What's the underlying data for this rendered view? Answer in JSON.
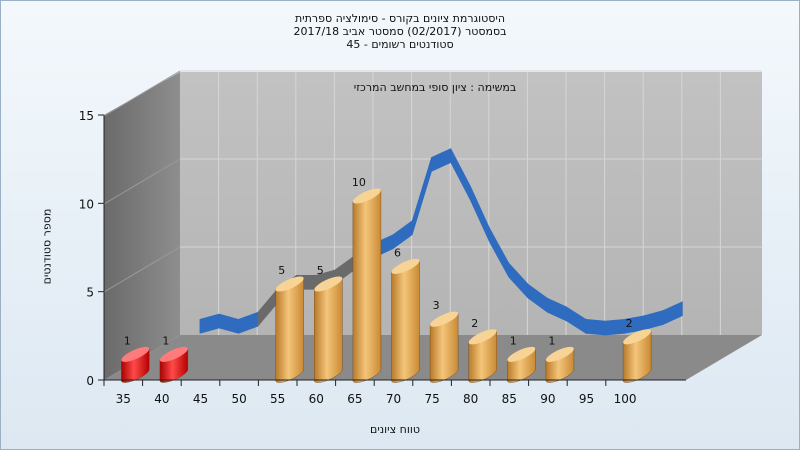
{
  "chart_data": {
    "type": "bar",
    "title_lines": [
      "היסטוגרמת ציונים בקורס - סימולציה ספרתית",
      "בסמסטר  (02/2017)  סמסטר אביב 2017/18",
      "סטודנטים רשומים - 45"
    ],
    "subtitle": "במשימה : ציון סופי במחשב המרכזי",
    "xlabel": "טווח ציונים",
    "ylabel": "מספר סטודנטים",
    "categories": [
      "35",
      "40",
      "45",
      "50",
      "55",
      "60",
      "65",
      "70",
      "75",
      "80",
      "85",
      "90",
      "95",
      "100"
    ],
    "values": [
      1,
      1,
      null,
      null,
      5,
      5,
      10,
      6,
      3,
      2,
      1,
      1,
      null,
      2
    ],
    "bar_colors": [
      "#d81818",
      "#d81818",
      "",
      "",
      "#e6a84e",
      "#e6a84e",
      "#e6a84e",
      "#e6a84e",
      "#e6a84e",
      "#e6a84e",
      "#e6a84e",
      "#e6a84e",
      "",
      "#e6a84e"
    ],
    "curve_x": [
      40,
      42.5,
      45,
      47.5,
      50,
      52.5,
      55,
      57.5,
      60,
      62.5,
      65,
      67.5,
      70,
      72.5,
      75,
      77.5,
      80,
      82.5,
      85,
      87.5,
      90,
      92.5,
      95,
      97.5,
      100,
      102.5
    ],
    "curve_y": [
      1.8,
      2.1,
      1.8,
      2.2,
      3.5,
      4.3,
      4.3,
      4.6,
      5.4,
      6.1,
      6.6,
      7.4,
      11.0,
      11.5,
      9.4,
      7.0,
      5.0,
      3.8,
      3.0,
      2.5,
      1.8,
      1.7,
      1.8,
      2.0,
      2.3,
      2.8
    ],
    "curve_color": "#2f6bbf",
    "yticks": [
      "0",
      "5",
      "10",
      "15"
    ],
    "ylim": [
      0,
      15
    ],
    "grid": true
  }
}
